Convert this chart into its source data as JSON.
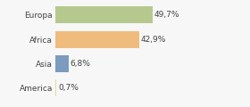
{
  "categories": [
    "Europa",
    "Africa",
    "Asia",
    "America"
  ],
  "values": [
    49.7,
    42.9,
    6.8,
    0.7
  ],
  "labels": [
    "49,7%",
    "42,9%",
    "6,8%",
    "0,7%"
  ],
  "bar_colors": [
    "#b5c98e",
    "#f0bc7e",
    "#7b9bbf",
    "#e8d89a"
  ],
  "background_color": "#f7f7f7",
  "xlim": [
    0,
    70
  ],
  "label_fontsize": 6.5,
  "tick_fontsize": 6.5,
  "bar_height": 0.7
}
